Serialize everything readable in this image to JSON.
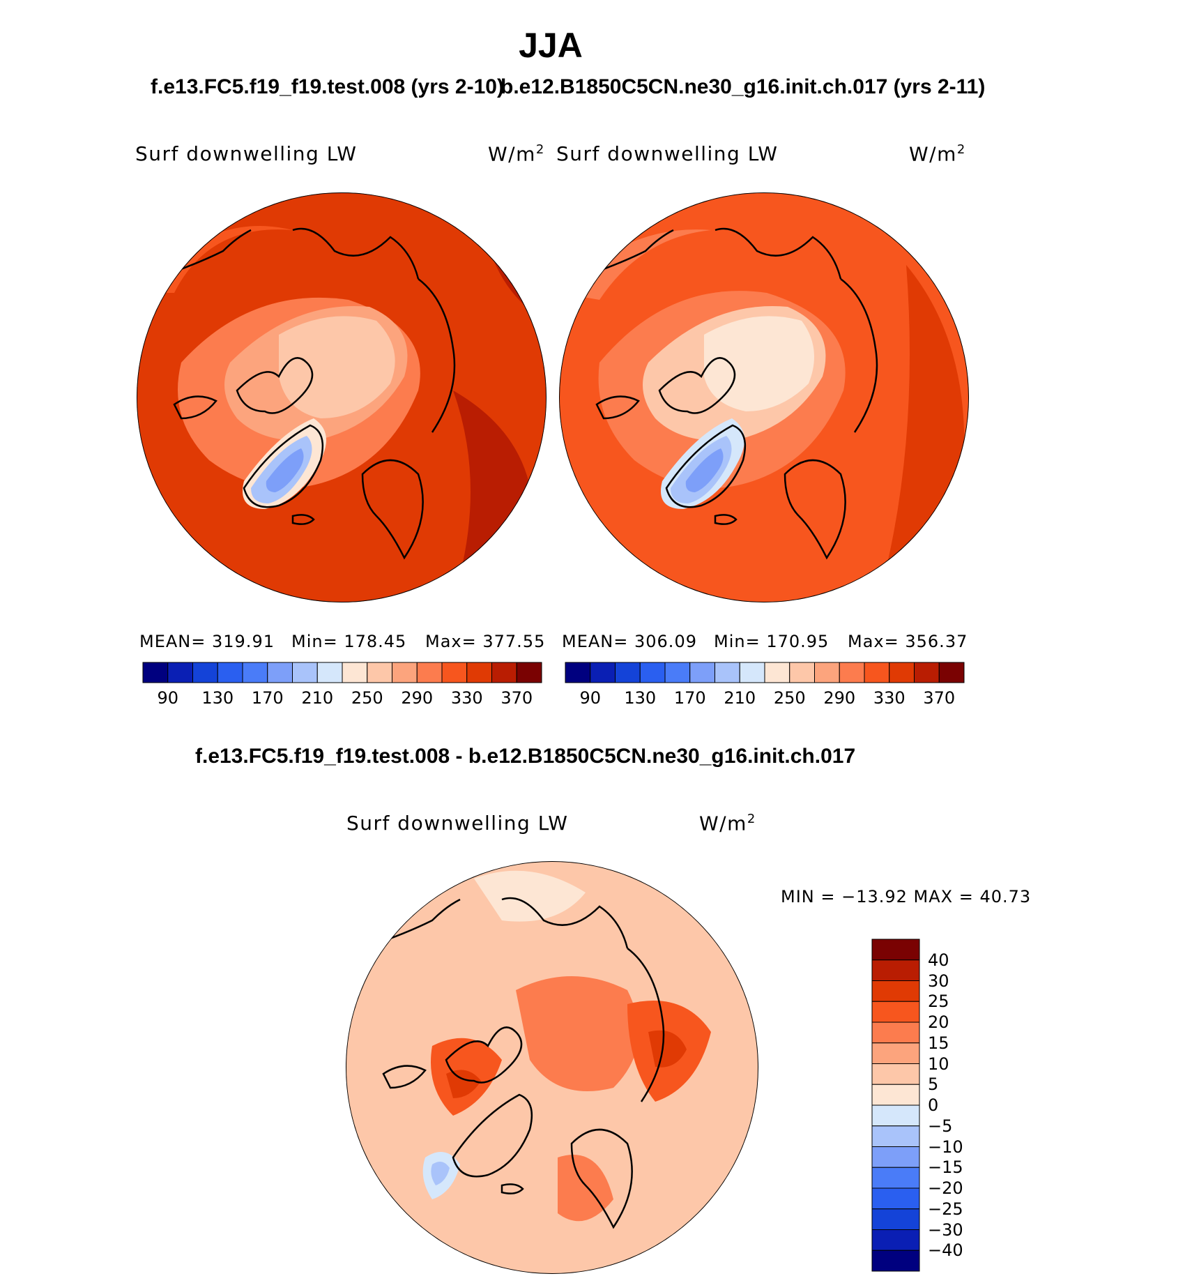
{
  "header": {
    "title": "JJA",
    "left_case": "f.e13.FC5.f19_f19.test.008 (yrs 2-10)",
    "right_case": "b.e12.B1850C5CN.ne30_g16.init.ch.017 (yrs 2-11)",
    "diff_case": "f.e13.FC5.f19_f19.test.008 - b.e12.B1850C5CN.ne30_g16.init.ch.017"
  },
  "panels": {
    "left": {
      "variable": "Surf downwelling LW",
      "units_base": "W/m",
      "units_exp": "2",
      "mean_label": "MEAN=",
      "mean_value": "319.91",
      "min_label": "Min=",
      "min_value": "178.45",
      "max_label": "Max=",
      "max_value": "377.55"
    },
    "right": {
      "variable": "Surf downwelling LW",
      "units_base": "W/m",
      "units_exp": "2",
      "mean_label": "MEAN=",
      "mean_value": "306.09",
      "min_label": "Min=",
      "min_value": "170.95",
      "max_label": "Max=",
      "max_value": "356.37"
    },
    "diff": {
      "variable": "Surf downwelling LW",
      "units_base": "W/m",
      "units_exp": "2",
      "minmax_text": "MIN = −13.92 MAX =  40.73"
    }
  },
  "chart_data": [
    {
      "type": "map",
      "projection": "north polar stereographic",
      "title": "f.e13.FC5.f19_f19.test.008 (yrs 2-10)",
      "variable": "Surf downwelling LW",
      "units": "W/m2",
      "mean": 319.91,
      "min": 178.45,
      "max": 377.55,
      "colorbar": {
        "levels": [
          90,
          110,
          130,
          150,
          170,
          190,
          210,
          230,
          250,
          270,
          290,
          310,
          330,
          350,
          370
        ],
        "tick_labels": [
          "90",
          "130",
          "170",
          "210",
          "250",
          "290",
          "330",
          "370"
        ],
        "colors": [
          "#00007f",
          "#0a1fb4",
          "#1443d8",
          "#2a5ff0",
          "#4a7cf8",
          "#7d9ff9",
          "#a9c3fa",
          "#d5e7fb",
          "#fde6d4",
          "#fdc7a9",
          "#fca47d",
          "#fc7c4e",
          "#f7561e",
          "#e03a04",
          "#b91d02",
          "#7a0202"
        ]
      }
    },
    {
      "type": "map",
      "projection": "north polar stereographic",
      "title": "b.e12.B1850C5CN.ne30_g16.init.ch.017 (yrs 2-11)",
      "variable": "Surf downwelling LW",
      "units": "W/m2",
      "mean": 306.09,
      "min": 170.95,
      "max": 356.37,
      "colorbar": {
        "levels": [
          90,
          110,
          130,
          150,
          170,
          190,
          210,
          230,
          250,
          270,
          290,
          310,
          330,
          350,
          370
        ],
        "tick_labels": [
          "90",
          "130",
          "170",
          "210",
          "250",
          "290",
          "330",
          "370"
        ],
        "colors": [
          "#00007f",
          "#0a1fb4",
          "#1443d8",
          "#2a5ff0",
          "#4a7cf8",
          "#7d9ff9",
          "#a9c3fa",
          "#d5e7fb",
          "#fde6d4",
          "#fdc7a9",
          "#fca47d",
          "#fc7c4e",
          "#f7561e",
          "#e03a04",
          "#b91d02",
          "#7a0202"
        ]
      }
    },
    {
      "type": "map",
      "projection": "north polar stereographic",
      "title": "f.e13.FC5.f19_f19.test.008 - b.e12.B1850C5CN.ne30_g16.init.ch.017",
      "variable": "Surf downwelling LW",
      "units": "W/m2",
      "min": -13.92,
      "max": 40.73,
      "colorbar": {
        "levels": [
          40,
          30,
          25,
          20,
          15,
          10,
          5,
          0,
          -5,
          -10,
          -15,
          -20,
          -25,
          -30,
          -40
        ],
        "tick_labels": [
          "40",
          "30",
          "25",
          "20",
          "15",
          "10",
          "5",
          "0",
          "−5",
          "−10",
          "−15",
          "−20",
          "−25",
          "−30",
          "−40"
        ],
        "colors": [
          "#7a0202",
          "#b91d02",
          "#e03a04",
          "#f7561e",
          "#fc7c4e",
          "#fca47d",
          "#fdc7a9",
          "#fde6d4",
          "#d5e7fb",
          "#a9c3fa",
          "#7d9ff9",
          "#4a7cf8",
          "#2a5ff0",
          "#1443d8",
          "#0a1fb4",
          "#00007f"
        ]
      }
    }
  ]
}
